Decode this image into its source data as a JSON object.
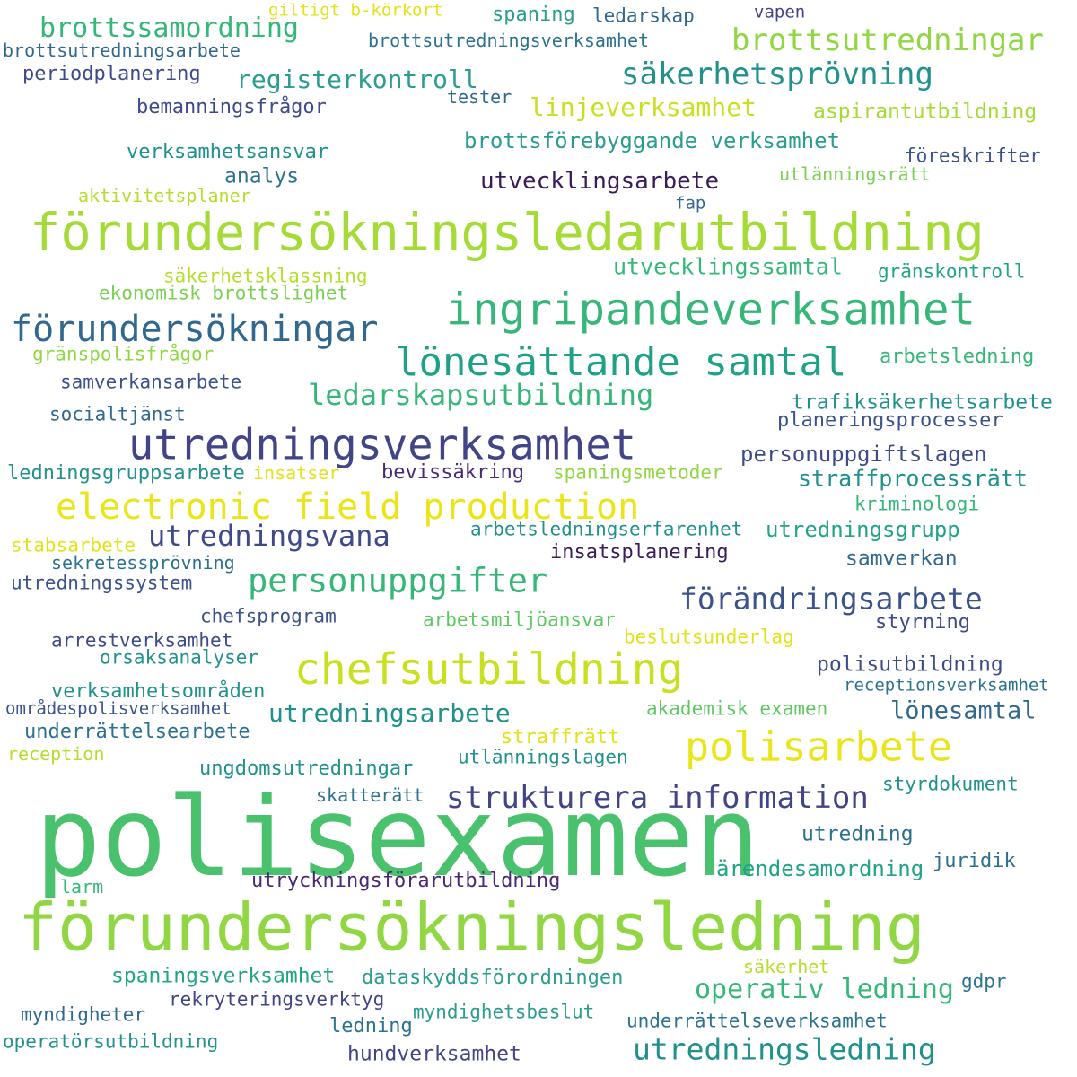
{
  "words": [
    {
      "text": "giltigt b-körkort",
      "color": "#dfe318"
    },
    {
      "text": "spaning",
      "color": "#2a9d8e"
    },
    {
      "text": "ledarskap",
      "color": "#31688e"
    },
    {
      "text": "vapen",
      "color": "#414487"
    },
    {
      "text": "brottssamordning",
      "color": "#35b779"
    },
    {
      "text": "brottsutredningsarbete",
      "color": "#31688e"
    },
    {
      "text": "brottsutredningsverksamhet",
      "color": "#2c728e"
    },
    {
      "text": "brottsutredningar",
      "color": "#90d743"
    },
    {
      "text": "periodplanering",
      "color": "#3e4a89"
    },
    {
      "text": "registerkontroll",
      "color": "#2a9d8e"
    },
    {
      "text": "säkerhetsprövning",
      "color": "#21918c"
    },
    {
      "text": "tester",
      "color": "#31688e"
    },
    {
      "text": "bemanningsfrågor",
      "color": "#3e4a89"
    },
    {
      "text": "linjeverksamhet",
      "color": "#c8e020"
    },
    {
      "text": "aspirantutbildning",
      "color": "#a5db36"
    },
    {
      "text": "brottsförebyggande verksamhet",
      "color": "#2a9d8e"
    },
    {
      "text": "verksamhetsansvar",
      "color": "#20928c"
    },
    {
      "text": "föreskrifter",
      "color": "#3b528b"
    },
    {
      "text": "analys",
      "color": "#2c728e"
    },
    {
      "text": "utvecklingsarbete",
      "color": "#3b1c5a"
    },
    {
      "text": "utlänningsrätt",
      "color": "#7ad151"
    },
    {
      "text": "aktivitetsplaner",
      "color": "#b5de2b"
    },
    {
      "text": "fap",
      "color": "#31688e"
    },
    {
      "text": "förundersökningsledarutbildning",
      "color": "#a5db36"
    },
    {
      "text": "utvecklingssamtal",
      "color": "#35b779"
    },
    {
      "text": "säkerhetsklassning",
      "color": "#b5de2b"
    },
    {
      "text": "gränskontroll",
      "color": "#20a386"
    },
    {
      "text": "ekonomisk brottslighet",
      "color": "#7ad151"
    },
    {
      "text": "ingripandeverksamhet",
      "color": "#35b779"
    },
    {
      "text": "förundersökningar",
      "color": "#31688e"
    },
    {
      "text": "gränspolisfrågor",
      "color": "#90d743"
    },
    {
      "text": "lönesättande samtal",
      "color": "#1fa187"
    },
    {
      "text": "arbetsledning",
      "color": "#35b779"
    },
    {
      "text": "samverkansarbete",
      "color": "#3b528b"
    },
    {
      "text": "ledarskapsutbildning",
      "color": "#35b779"
    },
    {
      "text": "trafiksäkerhetsarbete",
      "color": "#21918c"
    },
    {
      "text": "socialtjänst",
      "color": "#31688e"
    },
    {
      "text": "planeringsprocesser",
      "color": "#3b528b"
    },
    {
      "text": "utredningsverksamhet",
      "color": "#414487"
    },
    {
      "text": "personuppgiftslagen",
      "color": "#3e4a89"
    },
    {
      "text": "ledningsgruppsarbete",
      "color": "#21918c"
    },
    {
      "text": "insatser",
      "color": "#dfe318"
    },
    {
      "text": "bevissäkring",
      "color": "#482878"
    },
    {
      "text": "spaningsmetoder",
      "color": "#90d743"
    },
    {
      "text": "straffprocessrätt",
      "color": "#21918c"
    },
    {
      "text": "electronic field production",
      "color": "#eae51a"
    },
    {
      "text": "kriminologi",
      "color": "#35b779"
    },
    {
      "text": "utredningsvana",
      "color": "#3e4a89"
    },
    {
      "text": "arbetsledningserfarenhet",
      "color": "#21918c"
    },
    {
      "text": "utredningsgrupp",
      "color": "#20a386"
    },
    {
      "text": "stabsarbete",
      "color": "#dfe318"
    },
    {
      "text": "sekretessprövning",
      "color": "#2c728e"
    },
    {
      "text": "insatsplanering",
      "color": "#3b1c5a"
    },
    {
      "text": "samverkan",
      "color": "#31688e"
    },
    {
      "text": "personuppgifter",
      "color": "#35b779"
    },
    {
      "text": "utredningssystem",
      "color": "#3b528b"
    },
    {
      "text": "förändringsarbete",
      "color": "#3b528b"
    },
    {
      "text": "chefsprogram",
      "color": "#3b528b"
    },
    {
      "text": "arbetsmiljöansvar",
      "color": "#5ec962"
    },
    {
      "text": "styrning",
      "color": "#3e4a89"
    },
    {
      "text": "arrestverksamhet",
      "color": "#3e4a89"
    },
    {
      "text": "beslutsunderlag",
      "color": "#dfe318"
    },
    {
      "text": "orsaksanalyser",
      "color": "#21918c"
    },
    {
      "text": "chefsutbildning",
      "color": "#c8e020"
    },
    {
      "text": "polisutbildning",
      "color": "#3e4a89"
    },
    {
      "text": "verksamhetsområden",
      "color": "#21918c"
    },
    {
      "text": "receptionsverksamhet",
      "color": "#2c728e"
    },
    {
      "text": "områdespolisverksamhet",
      "color": "#3b528b"
    },
    {
      "text": "utredningsarbete",
      "color": "#21918c"
    },
    {
      "text": "akademisk examen",
      "color": "#5ec962"
    },
    {
      "text": "lönesamtal",
      "color": "#31688e"
    },
    {
      "text": "underrättelsearbete",
      "color": "#2c728e"
    },
    {
      "text": "straffrätt",
      "color": "#dfe318"
    },
    {
      "text": "polisarbete",
      "color": "#eae51a"
    },
    {
      "text": "reception",
      "color": "#b5de2b"
    },
    {
      "text": "utlänningslagen",
      "color": "#20928c"
    },
    {
      "text": "ungdomsutredningar",
      "color": "#21918c"
    },
    {
      "text": "styrdokument",
      "color": "#21918c"
    },
    {
      "text": "strukturera information",
      "color": "#414487"
    },
    {
      "text": "skatterätt",
      "color": "#2c728e"
    },
    {
      "text": "polisexamen",
      "color": "#4ac16d"
    },
    {
      "text": "utredning",
      "color": "#2c728e"
    },
    {
      "text": "juridik",
      "color": "#2c728e"
    },
    {
      "text": "ärendesamordning",
      "color": "#20a386"
    },
    {
      "text": "larm",
      "color": "#35b779"
    },
    {
      "text": "utryckningsförarutbildning",
      "color": "#482878"
    },
    {
      "text": "förundersökningsledning",
      "color": "#90d743"
    },
    {
      "text": "säkerhet",
      "color": "#b5de2b"
    },
    {
      "text": "spaningsverksamhet",
      "color": "#20a386"
    },
    {
      "text": "dataskyddsförordningen",
      "color": "#2a9d8e"
    },
    {
      "text": "gdpr",
      "color": "#2c728e"
    },
    {
      "text": "operativ ledning",
      "color": "#35b779"
    },
    {
      "text": "rekryteringsverktyg",
      "color": "#414487"
    },
    {
      "text": "myndigheter",
      "color": "#31688e"
    },
    {
      "text": "myndighetsbeslut",
      "color": "#2a9d8e"
    },
    {
      "text": "ledning",
      "color": "#2c728e"
    },
    {
      "text": "underrättelseverksamhet",
      "color": "#2c728e"
    },
    {
      "text": "operatörsutbildning",
      "color": "#21918c"
    },
    {
      "text": "hundverksamhet",
      "color": "#414487"
    },
    {
      "text": "utredningsledning",
      "color": "#21918c"
    }
  ]
}
